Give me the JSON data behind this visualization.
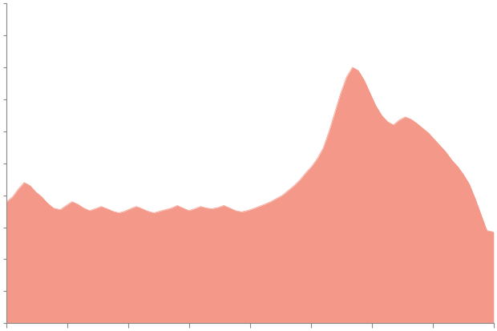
{
  "fill_color": "#f4998a",
  "line_color": "#f4998a",
  "background_color": "#ffffff",
  "axis_color": "#888888",
  "tick_color": "#888888",
  "xlim": [
    0,
    1
  ],
  "ylim": [
    0,
    1
  ],
  "x_ticks": [
    0.0,
    0.125,
    0.25,
    0.375,
    0.5,
    0.625,
    0.75,
    0.875,
    1.0
  ],
  "y_ticks": [
    0.0,
    0.1,
    0.2,
    0.3,
    0.4,
    0.5,
    0.6,
    0.7,
    0.8,
    0.9,
    1.0
  ],
  "data_x": [
    0.0,
    0.012,
    0.024,
    0.036,
    0.048,
    0.06,
    0.072,
    0.084,
    0.096,
    0.11,
    0.122,
    0.134,
    0.146,
    0.158,
    0.17,
    0.182,
    0.194,
    0.206,
    0.218,
    0.23,
    0.242,
    0.254,
    0.266,
    0.278,
    0.29,
    0.302,
    0.314,
    0.326,
    0.338,
    0.35,
    0.362,
    0.374,
    0.386,
    0.398,
    0.41,
    0.422,
    0.434,
    0.446,
    0.458,
    0.47,
    0.482,
    0.494,
    0.506,
    0.518,
    0.53,
    0.542,
    0.554,
    0.566,
    0.578,
    0.59,
    0.602,
    0.614,
    0.626,
    0.638,
    0.65,
    0.662,
    0.674,
    0.686,
    0.698,
    0.71,
    0.722,
    0.734,
    0.746,
    0.758,
    0.77,
    0.782,
    0.794,
    0.806,
    0.818,
    0.83,
    0.842,
    0.854,
    0.866,
    0.878,
    0.89,
    0.902,
    0.914,
    0.926,
    0.938,
    0.95,
    0.962,
    0.974,
    0.986,
    1.0
  ],
  "data_y": [
    0.38,
    0.395,
    0.42,
    0.44,
    0.43,
    0.41,
    0.395,
    0.375,
    0.36,
    0.355,
    0.368,
    0.38,
    0.372,
    0.36,
    0.352,
    0.358,
    0.365,
    0.358,
    0.35,
    0.345,
    0.35,
    0.358,
    0.365,
    0.358,
    0.35,
    0.345,
    0.35,
    0.355,
    0.36,
    0.368,
    0.36,
    0.352,
    0.358,
    0.365,
    0.36,
    0.358,
    0.362,
    0.368,
    0.36,
    0.352,
    0.348,
    0.352,
    0.358,
    0.365,
    0.372,
    0.38,
    0.39,
    0.4,
    0.415,
    0.43,
    0.448,
    0.47,
    0.49,
    0.515,
    0.548,
    0.6,
    0.66,
    0.72,
    0.77,
    0.8,
    0.79,
    0.76,
    0.72,
    0.68,
    0.65,
    0.63,
    0.62,
    0.635,
    0.645,
    0.638,
    0.625,
    0.61,
    0.595,
    0.575,
    0.555,
    0.535,
    0.51,
    0.49,
    0.465,
    0.435,
    0.39,
    0.34,
    0.29,
    0.285
  ]
}
